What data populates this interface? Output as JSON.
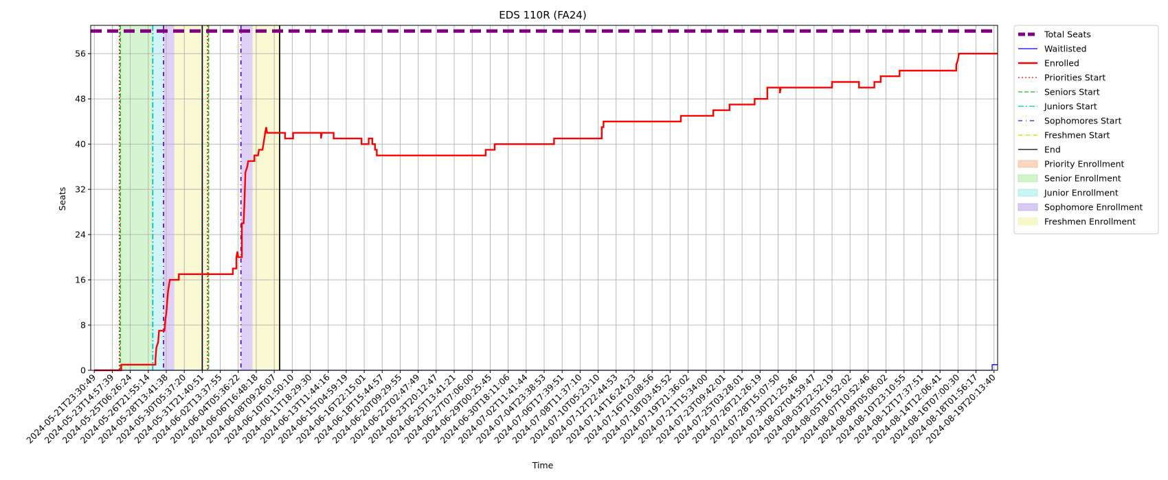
{
  "chart_data": {
    "type": "line",
    "title": "EDS 110R (FA24)",
    "xlabel": "Time",
    "ylabel": "Seats",
    "ylim": [
      0,
      61
    ],
    "y_ticks": [
      0,
      8,
      16,
      24,
      32,
      40,
      48,
      56
    ],
    "x_tick_labels": [
      "2024-05-21T23:30:49",
      "2024-05-23T14:57:39",
      "2024-05-25T06:26:24",
      "2024-05-26T21:55:14",
      "2024-05-28T13:41:38",
      "2024-05-30T05:37:20",
      "2024-05-31T21:40:51",
      "2024-06-02T13:37:55",
      "2024-06-04T05:36:22",
      "2024-06-06T16:48:18",
      "2024-06-08T09:26:07",
      "2024-06-10T01:50:10",
      "2024-06-11T18:29:30",
      "2024-06-13T11:44:16",
      "2024-06-15T04:59:19",
      "2024-06-16T22:15:01",
      "2024-06-18T15:44:57",
      "2024-06-20T09:29:55",
      "2024-06-22T02:47:49",
      "2024-06-23T20:12:47",
      "2024-06-25T13:41:21",
      "2024-06-27T07:06:00",
      "2024-06-29T00:25:45",
      "2024-06-30T18:11:06",
      "2024-07-02T11:41:44",
      "2024-07-04T23:38:53",
      "2024-07-06T17:39:51",
      "2024-07-08T11:37:10",
      "2024-07-10T05:23:10",
      "2024-07-12T22:44:53",
      "2024-07-14T16:24:23",
      "2024-07-16T10:08:56",
      "2024-07-18T03:45:52",
      "2024-07-19T21:36:02",
      "2024-07-21T15:34:00",
      "2024-07-23T09:42:01",
      "2024-07-25T03:28:01",
      "2024-07-26T21:26:19",
      "2024-07-28T15:07:50",
      "2024-07-30T21:25:46",
      "2024-08-02T04:59:47",
      "2024-08-03T22:52:19",
      "2024-08-05T16:52:02",
      "2024-08-07T10:52:46",
      "2024-08-09T05:06:02",
      "2024-08-10T23:10:55",
      "2024-08-12T17:37:51",
      "2024-08-14T12:06:41",
      "2024-08-16T07:00:30",
      "2024-08-18T01:56:17",
      "2024-08-19T20:13:40"
    ],
    "grid": true,
    "legend_position": "outside right",
    "legend": [
      {
        "label": "Total Seats",
        "kind": "line",
        "color": "#800080",
        "dash": "16,8",
        "width": 5
      },
      {
        "label": "Waitlisted",
        "kind": "line",
        "color": "#0000ff",
        "dash": "",
        "width": 1.3
      },
      {
        "label": "Enrolled",
        "kind": "line",
        "color": "#ff0000",
        "dash": "",
        "width": 2.4
      },
      {
        "label": "Priorities Start",
        "kind": "line",
        "color": "#ff0000",
        "dash": "2,3",
        "width": 1.3
      },
      {
        "label": "Seniors Start",
        "kind": "line",
        "color": "#22bb22",
        "dash": "6,3",
        "width": 1.3
      },
      {
        "label": "Juniors Start",
        "kind": "line",
        "color": "#00bfbf",
        "dash": "8,3,2,3",
        "width": 1.3
      },
      {
        "label": "Sophomores Start",
        "kind": "line",
        "color": "#5500cc",
        "dash": "6,5,1,5",
        "width": 1.3
      },
      {
        "label": "Freshmen Start",
        "kind": "line",
        "color": "#d4d400",
        "dash": "6,2,1,2",
        "width": 1.3
      },
      {
        "label": "End",
        "kind": "line",
        "color": "#000000",
        "dash": "",
        "width": 1.3
      },
      {
        "label": "Priority Enrollment",
        "kind": "patch",
        "color": "#f5c6a8"
      },
      {
        "label": "Senior Enrollment",
        "kind": "patch",
        "color": "#b9efb0"
      },
      {
        "label": "Junior Enrollment",
        "kind": "patch",
        "color": "#b3eef0"
      },
      {
        "label": "Sophomore Enrollment",
        "kind": "patch",
        "color": "#c9b3ee"
      },
      {
        "label": "Freshmen Enrollment",
        "kind": "patch",
        "color": "#f5f5b5"
      }
    ],
    "total_seats": 60,
    "shaded_regions": [
      {
        "name": "Senior Enrollment",
        "color": "#b9efb0",
        "start": 1.45,
        "end": 3.25
      },
      {
        "name": "Junior Enrollment",
        "color": "#b3eef0",
        "start": 3.25,
        "end": 3.85
      },
      {
        "name": "Sophomore Enrollment",
        "color": "#c9b3ee",
        "start": 3.85,
        "end": 4.45
      },
      {
        "name": "Freshmen Enrollment",
        "color": "#f5f5b5",
        "start": 4.45,
        "end": 6.0
      },
      {
        "name": "Freshmen Enrollment",
        "color": "#f5f5b5",
        "start": 6.0,
        "end": 6.35
      },
      {
        "name": "Sophomore Enrollment",
        "color": "#c9b3ee",
        "start": 8.15,
        "end": 8.8
      },
      {
        "name": "Freshmen Enrollment",
        "color": "#f5f5b5",
        "start": 8.8,
        "end": 10.3
      }
    ],
    "vertical_markers": [
      {
        "name": "Priorities Start",
        "x": 1.4
      },
      {
        "name": "Seniors Start",
        "x": 1.45
      },
      {
        "name": "Juniors Start",
        "x": 3.25
      },
      {
        "name": "Sophomores Start",
        "x": 3.85
      },
      {
        "name": "End",
        "x": 6.0
      },
      {
        "name": "Priorities Start",
        "x": 6.3
      },
      {
        "name": "Seniors Start",
        "x": 6.35
      },
      {
        "name": "Sophomores Start",
        "x": 8.15
      },
      {
        "name": "End",
        "x": 10.3
      }
    ],
    "series": [
      {
        "name": "Enrolled",
        "color": "#ff0000",
        "points": [
          [
            0,
            0
          ],
          [
            1.5,
            0
          ],
          [
            1.5,
            1
          ],
          [
            3.4,
            1
          ],
          [
            3.4,
            2
          ],
          [
            3.45,
            4
          ],
          [
            3.55,
            5
          ],
          [
            3.6,
            7
          ],
          [
            3.9,
            7
          ],
          [
            3.95,
            9
          ],
          [
            4.0,
            10
          ],
          [
            4.05,
            12
          ],
          [
            4.1,
            14
          ],
          [
            4.15,
            15
          ],
          [
            4.2,
            16
          ],
          [
            4.7,
            16
          ],
          [
            4.7,
            17
          ],
          [
            7.7,
            17
          ],
          [
            7.7,
            18
          ],
          [
            7.9,
            18
          ],
          [
            7.9,
            20
          ],
          [
            7.95,
            21
          ],
          [
            8.0,
            20
          ],
          [
            8.2,
            20
          ],
          [
            8.2,
            26
          ],
          [
            8.3,
            26
          ],
          [
            8.35,
            30
          ],
          [
            8.4,
            35
          ],
          [
            8.5,
            36
          ],
          [
            8.55,
            37
          ],
          [
            8.9,
            37
          ],
          [
            8.9,
            38
          ],
          [
            9.1,
            38
          ],
          [
            9.15,
            39
          ],
          [
            9.35,
            39
          ],
          [
            9.4,
            40
          ],
          [
            9.45,
            41
          ],
          [
            9.5,
            42
          ],
          [
            9.55,
            43
          ],
          [
            9.6,
            42
          ],
          [
            10.6,
            42
          ],
          [
            10.6,
            41
          ],
          [
            11.05,
            41
          ],
          [
            11.05,
            42
          ],
          [
            12.6,
            42
          ],
          [
            12.6,
            41
          ],
          [
            12.65,
            42
          ],
          [
            13.3,
            42
          ],
          [
            13.3,
            41
          ],
          [
            14.85,
            41
          ],
          [
            14.85,
            40
          ],
          [
            15.25,
            40
          ],
          [
            15.25,
            41
          ],
          [
            15.45,
            41
          ],
          [
            15.45,
            40
          ],
          [
            15.6,
            40
          ],
          [
            15.6,
            39
          ],
          [
            15.7,
            39
          ],
          [
            15.7,
            38
          ],
          [
            21.75,
            38
          ],
          [
            21.75,
            39
          ],
          [
            22.25,
            39
          ],
          [
            22.25,
            40
          ],
          [
            25.55,
            40
          ],
          [
            25.55,
            41
          ],
          [
            28.2,
            41
          ],
          [
            28.2,
            43
          ],
          [
            28.3,
            43
          ],
          [
            28.3,
            44
          ],
          [
            32.6,
            44
          ],
          [
            32.6,
            45
          ],
          [
            34.4,
            45
          ],
          [
            34.4,
            46
          ],
          [
            35.3,
            46
          ],
          [
            35.3,
            47
          ],
          [
            36.7,
            47
          ],
          [
            36.7,
            48
          ],
          [
            37.4,
            48
          ],
          [
            37.4,
            50
          ],
          [
            38.1,
            50
          ],
          [
            38.1,
            49
          ],
          [
            38.15,
            50
          ],
          [
            41.0,
            50
          ],
          [
            41.0,
            51
          ],
          [
            42.5,
            51
          ],
          [
            42.5,
            50
          ],
          [
            43.35,
            50
          ],
          [
            43.35,
            51
          ],
          [
            43.7,
            51
          ],
          [
            43.7,
            52
          ],
          [
            44.75,
            52
          ],
          [
            44.75,
            53
          ],
          [
            47.9,
            53
          ],
          [
            47.9,
            54
          ],
          [
            48.0,
            55
          ],
          [
            48.05,
            56
          ],
          [
            50.2,
            56
          ]
        ]
      },
      {
        "name": "Waitlisted",
        "color": "#0000ff",
        "points": [
          [
            0,
            0
          ],
          [
            49.9,
            0
          ],
          [
            49.9,
            1
          ],
          [
            50.2,
            1
          ]
        ]
      }
    ]
  }
}
